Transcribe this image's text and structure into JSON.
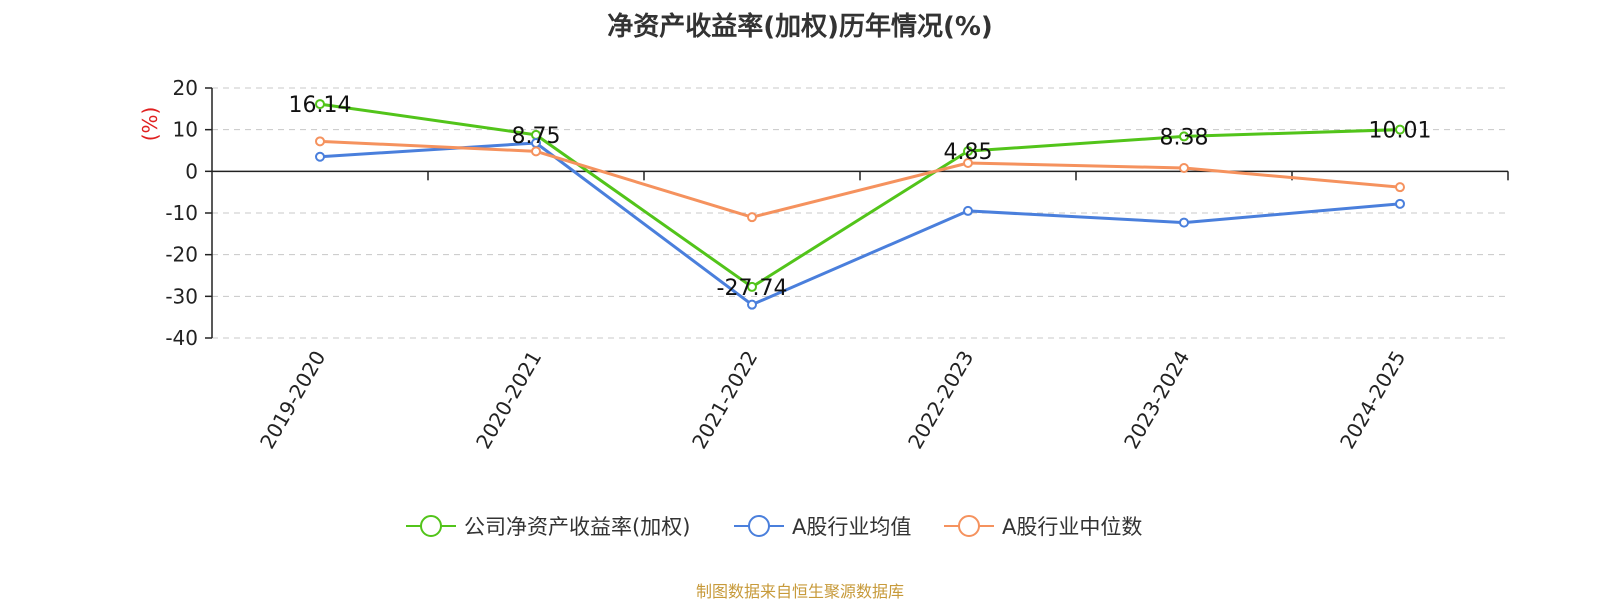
{
  "chart_data": {
    "type": "line",
    "title": "净资产收益率(加权)历年情况(%)",
    "ylabel": "(%)",
    "xlabel": "",
    "ylim": [
      -40,
      20
    ],
    "yticks": [
      20,
      10,
      0,
      -10,
      -20,
      -30,
      -40
    ],
    "grid": true,
    "legend_position": "bottom",
    "categories": [
      "2019-2020",
      "2020-2021",
      "2021-2022",
      "2022-2023",
      "2023-2024",
      "2024-2025"
    ],
    "series": [
      {
        "name": "公司净资产收益率(加权)",
        "color": "#52c41a",
        "values": [
          16.14,
          8.75,
          -27.74,
          4.85,
          8.38,
          10.01
        ],
        "show_labels": true
      },
      {
        "name": "A股行业均值",
        "color": "#4a7fdc",
        "values": [
          3.5,
          6.8,
          -32.0,
          -9.5,
          -12.3,
          -7.8
        ],
        "show_labels": false
      },
      {
        "name": "A股行业中位数",
        "color": "#f5925e",
        "values": [
          7.2,
          4.8,
          -11.0,
          2.0,
          0.8,
          -3.8
        ],
        "show_labels": false
      }
    ]
  },
  "colors": {
    "ylabel": "#e02020",
    "source": "#c79a3a",
    "axis": "#222222",
    "grid": "#c8c8c8"
  },
  "source_text": "制图数据来自恒生聚源数据库"
}
